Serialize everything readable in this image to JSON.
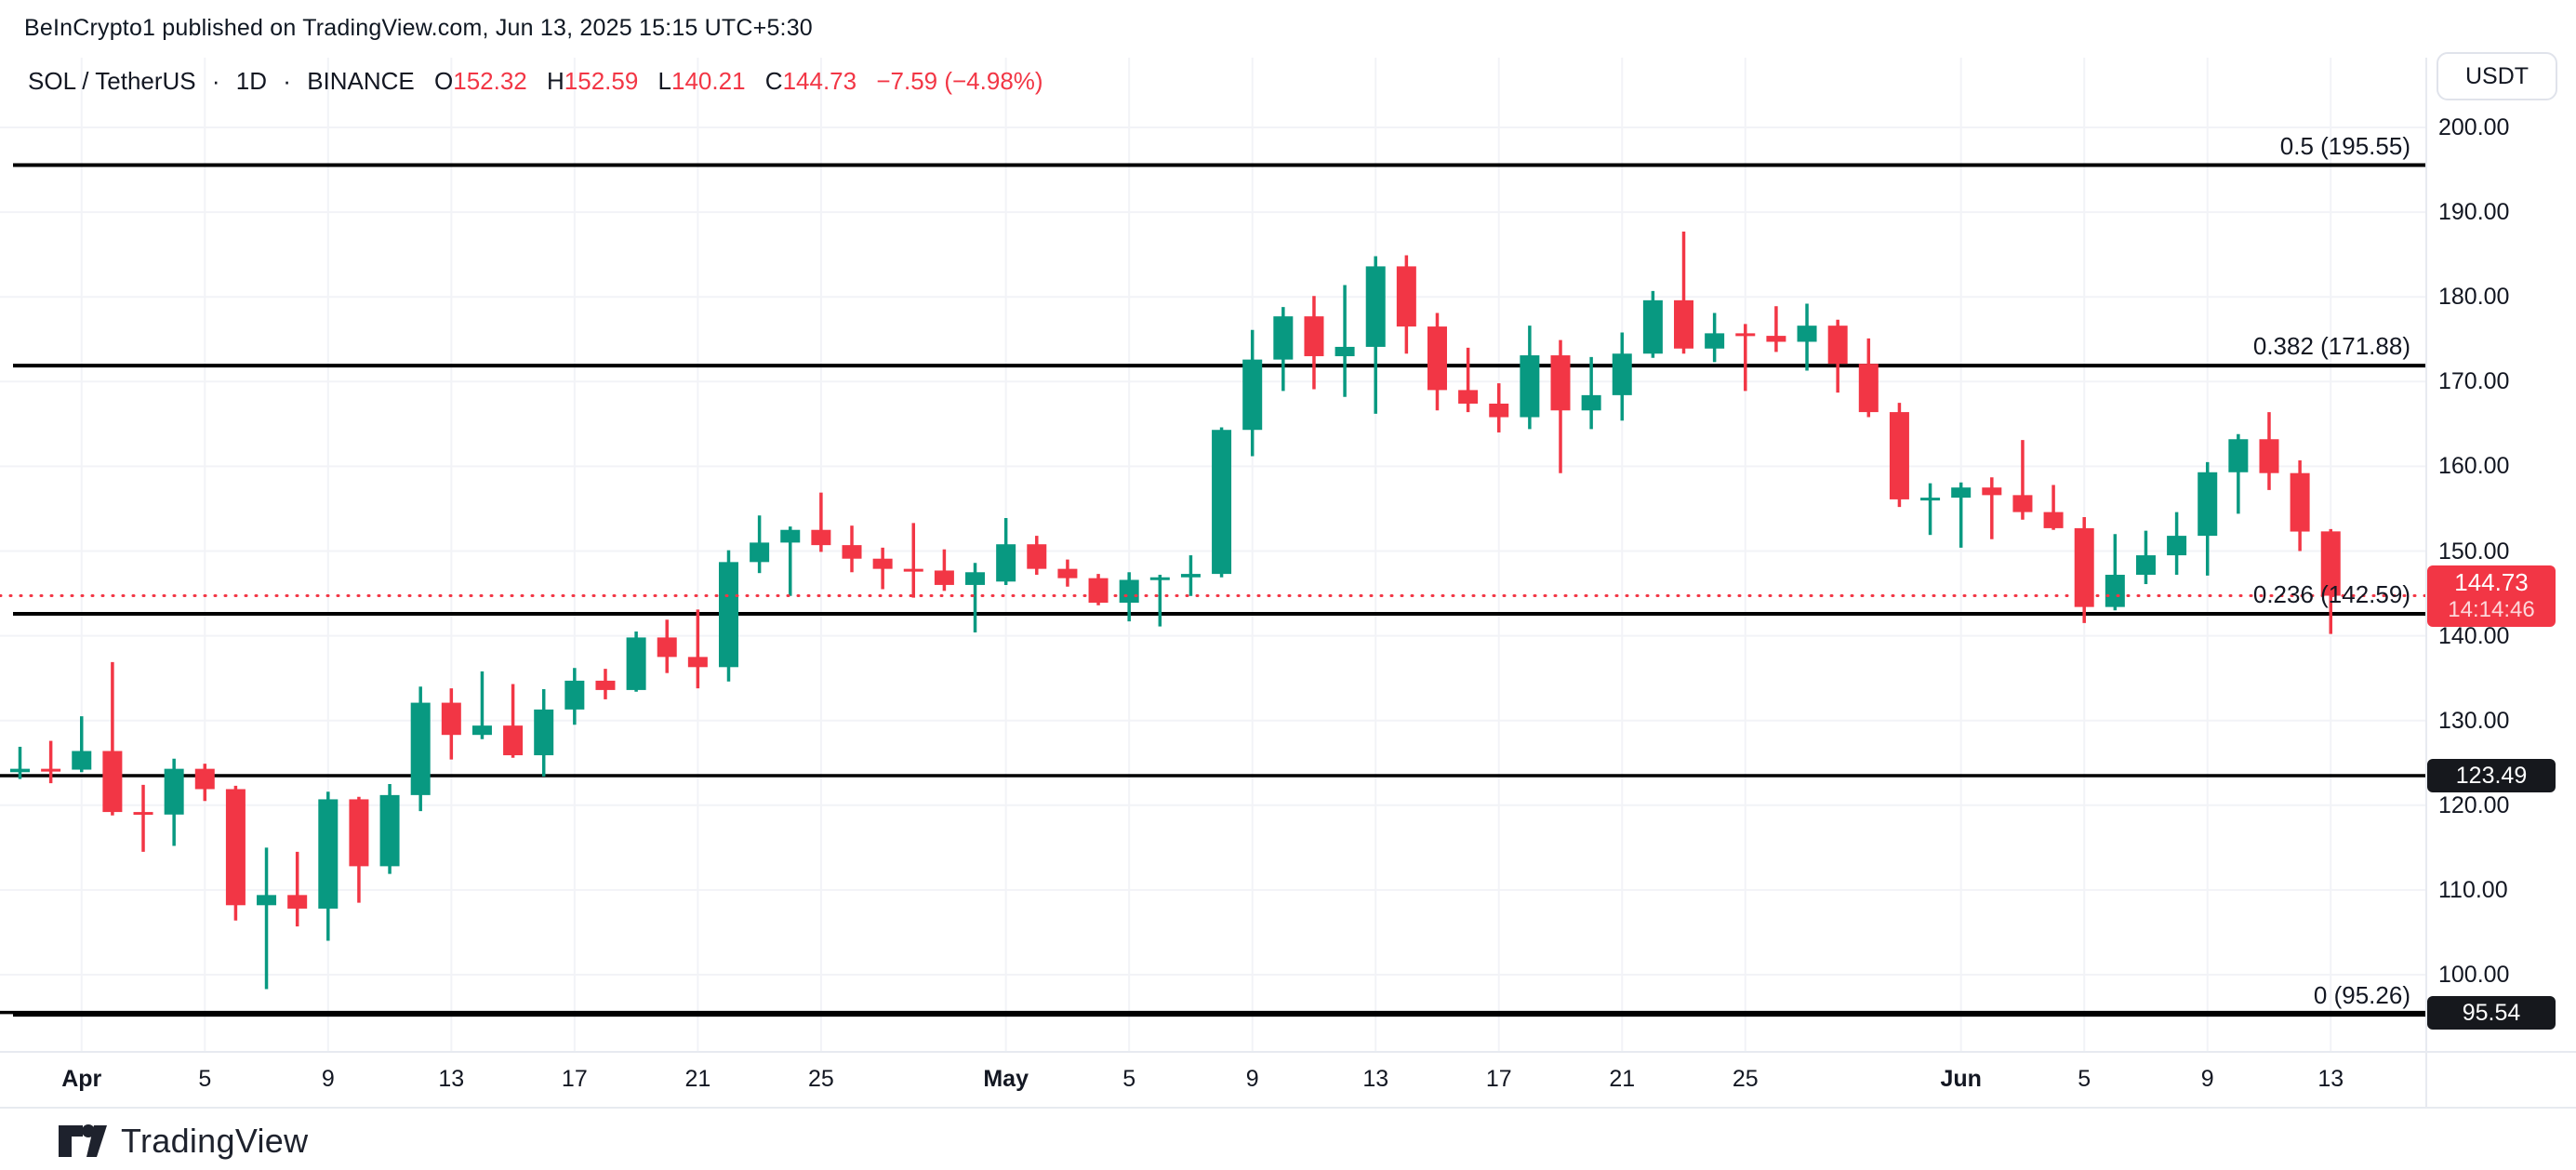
{
  "header": {
    "published_line": "BeInCrypto1 published on TradingView.com, Jun 13, 2025 15:15 UTC+5:30"
  },
  "legend": {
    "symbol": "SOL / TetherUS",
    "separator": "·",
    "interval": "1D",
    "exchange": "BINANCE",
    "ohlc": [
      {
        "label": "O",
        "value": "152.32"
      },
      {
        "label": "H",
        "value": "152.59"
      },
      {
        "label": "L",
        "value": "140.21"
      },
      {
        "label": "C",
        "value": "144.73"
      }
    ],
    "change": "−7.59 (−4.98%)"
  },
  "right_axis": {
    "currency_button": "USDT",
    "price_tag": {
      "price": "144.73",
      "countdown": "14:14:46"
    },
    "level_tags": [
      "123.49",
      "95.54"
    ]
  },
  "footer": {
    "brand": "TradingView"
  },
  "colors": {
    "up": "#089981",
    "down": "#f23645",
    "grid": "#f2f3f7",
    "line_black": "#000000",
    "last_price_red": "#f23645",
    "tag_black": "#16181d",
    "text_dark": "#131722"
  },
  "chart_data": {
    "type": "candlestick",
    "title": "SOL / TetherUS · 1D · BINANCE",
    "symbol": "SOL/USDT",
    "interval": "1D",
    "exchange": "BINANCE",
    "ylim": [
      93,
      202
    ],
    "grid": true,
    "price_gridlines": [
      100,
      110,
      120,
      130,
      140,
      150,
      160,
      170,
      180,
      190,
      200
    ],
    "price_axis_labels": [
      "100.00",
      "110.00",
      "120.00",
      "130.00",
      "140.00",
      "150.00",
      "160.00",
      "170.00",
      "180.00",
      "190.00",
      "200.00"
    ],
    "x_ticks": [
      {
        "index": 2,
        "label": "Apr",
        "bold": true
      },
      {
        "index": 6,
        "label": "5"
      },
      {
        "index": 10,
        "label": "9"
      },
      {
        "index": 14,
        "label": "13"
      },
      {
        "index": 18,
        "label": "17"
      },
      {
        "index": 22,
        "label": "21"
      },
      {
        "index": 26,
        "label": "25"
      },
      {
        "index": 32,
        "label": "May",
        "bold": true
      },
      {
        "index": 36,
        "label": "5"
      },
      {
        "index": 40,
        "label": "9"
      },
      {
        "index": 44,
        "label": "13"
      },
      {
        "index": 48,
        "label": "17"
      },
      {
        "index": 52,
        "label": "21"
      },
      {
        "index": 56,
        "label": "25"
      },
      {
        "index": 63,
        "label": "Jun",
        "bold": true
      },
      {
        "index": 67,
        "label": "5"
      },
      {
        "index": 71,
        "label": "9"
      },
      {
        "index": 75,
        "label": "13"
      }
    ],
    "fib_levels": [
      {
        "ratio": "0.5",
        "price": 195.55,
        "label": "0.5 (195.55)"
      },
      {
        "ratio": "0.382",
        "price": 171.88,
        "label": "0.382 (171.88)"
      },
      {
        "ratio": "0.236",
        "price": 142.59,
        "label": "0.236 (142.59)"
      },
      {
        "ratio": "0",
        "price": 95.26,
        "label": "0 (95.26)"
      }
    ],
    "level_lines": [
      {
        "price": 123.49,
        "tag": "123.49"
      },
      {
        "price": 95.54,
        "tag": "95.54"
      }
    ],
    "last_price_line": {
      "price": 144.73,
      "countdown": "14:14:46"
    },
    "candles": [
      [
        "Mar 30",
        123.9,
        126.9,
        123.1,
        124.3
      ],
      [
        "Mar 31",
        124.3,
        127.6,
        122.6,
        124.2
      ],
      [
        "Apr 1",
        124.2,
        130.5,
        123.9,
        126.4
      ],
      [
        "Apr 2",
        126.4,
        136.9,
        118.8,
        119.2
      ],
      [
        "Apr 3",
        119.2,
        122.4,
        114.5,
        118.9
      ],
      [
        "Apr 4",
        118.9,
        125.5,
        115.2,
        124.3
      ],
      [
        "Apr 5",
        124.3,
        124.9,
        120.5,
        121.9
      ],
      [
        "Apr 6",
        121.9,
        122.3,
        106.4,
        108.2
      ],
      [
        "Apr 7",
        108.2,
        115.0,
        98.3,
        109.4
      ],
      [
        "Apr 8",
        109.4,
        114.5,
        105.7,
        107.8
      ],
      [
        "Apr 9",
        107.8,
        121.6,
        104.0,
        120.7
      ],
      [
        "Apr 10",
        120.7,
        121.0,
        108.5,
        112.8
      ],
      [
        "Apr 11",
        112.8,
        122.5,
        111.9,
        121.2
      ],
      [
        "Apr 12",
        121.2,
        134.0,
        119.3,
        132.1
      ],
      [
        "Apr 13",
        132.1,
        133.8,
        125.4,
        128.3
      ],
      [
        "Apr 14",
        128.3,
        135.8,
        127.8,
        129.4
      ],
      [
        "Apr 15",
        129.4,
        134.3,
        125.6,
        125.9
      ],
      [
        "Apr 16",
        125.9,
        133.7,
        123.4,
        131.3
      ],
      [
        "Apr 17",
        131.3,
        136.2,
        129.5,
        134.7
      ],
      [
        "Apr 18",
        134.7,
        136.1,
        132.5,
        133.6
      ],
      [
        "Apr 19",
        133.6,
        140.5,
        133.4,
        139.8
      ],
      [
        "Apr 20",
        139.8,
        141.9,
        135.6,
        137.5
      ],
      [
        "Apr 21",
        137.5,
        143.1,
        133.8,
        136.3
      ],
      [
        "Apr 22",
        136.3,
        150.1,
        134.6,
        148.7
      ],
      [
        "Apr 23",
        148.7,
        154.2,
        147.4,
        151.0
      ],
      [
        "Apr 24",
        151.0,
        152.9,
        144.7,
        152.5
      ],
      [
        "Apr 25",
        152.5,
        156.9,
        149.9,
        150.7
      ],
      [
        "Apr 26",
        150.7,
        153.0,
        147.5,
        149.1
      ],
      [
        "Apr 27",
        149.1,
        150.4,
        145.5,
        147.9
      ],
      [
        "Apr 28",
        147.9,
        153.3,
        144.5,
        147.7
      ],
      [
        "Apr 29",
        147.7,
        150.2,
        145.3,
        146.0
      ],
      [
        "Apr 30",
        146.0,
        148.6,
        140.4,
        147.5
      ],
      [
        "May 1",
        146.4,
        153.9,
        146.0,
        150.8
      ],
      [
        "May 2",
        150.8,
        151.8,
        147.2,
        147.9
      ],
      [
        "May 3",
        147.9,
        149.0,
        145.8,
        146.8
      ],
      [
        "May 4",
        146.8,
        147.3,
        143.6,
        143.9
      ],
      [
        "May 5",
        143.9,
        147.5,
        141.7,
        146.6
      ],
      [
        "May 6",
        146.6,
        147.2,
        141.1,
        146.9
      ],
      [
        "May 7",
        146.9,
        149.5,
        144.7,
        147.3
      ],
      [
        "May 8",
        147.3,
        164.6,
        146.9,
        164.3
      ],
      [
        "May 9",
        164.3,
        176.1,
        161.2,
        172.6
      ],
      [
        "May 10",
        172.6,
        178.8,
        168.9,
        177.7
      ],
      [
        "May 11",
        177.7,
        180.1,
        169.1,
        173.0
      ],
      [
        "May 12",
        173.0,
        181.4,
        168.2,
        174.1
      ],
      [
        "May 13",
        174.1,
        184.8,
        166.2,
        183.6
      ],
      [
        "May 14",
        183.6,
        184.9,
        173.3,
        176.5
      ],
      [
        "May 15",
        176.5,
        178.1,
        166.6,
        169.0
      ],
      [
        "May 16",
        169.0,
        174.0,
        166.4,
        167.4
      ],
      [
        "May 17",
        167.4,
        169.8,
        164.0,
        165.8
      ],
      [
        "May 18",
        165.8,
        176.6,
        164.4,
        173.1
      ],
      [
        "May 19",
        173.1,
        174.9,
        159.2,
        166.6
      ],
      [
        "May 20",
        166.6,
        172.9,
        164.4,
        168.4
      ],
      [
        "May 21",
        168.4,
        175.8,
        165.4,
        173.3
      ],
      [
        "May 22",
        173.3,
        180.7,
        172.8,
        179.6
      ],
      [
        "May 23",
        179.6,
        187.7,
        173.3,
        173.9
      ],
      [
        "May 24",
        173.9,
        178.1,
        172.3,
        175.7
      ],
      [
        "May 25",
        175.7,
        176.8,
        168.9,
        175.4
      ],
      [
        "May 26",
        175.4,
        178.9,
        173.5,
        174.7
      ],
      [
        "May 27",
        174.7,
        179.2,
        171.3,
        176.6
      ],
      [
        "May 28",
        176.6,
        177.3,
        168.7,
        172.1
      ],
      [
        "May 29",
        172.1,
        175.1,
        165.8,
        166.4
      ],
      [
        "May 30",
        166.4,
        167.5,
        155.2,
        156.1
      ],
      [
        "May 31",
        156.1,
        158.0,
        151.9,
        156.3
      ],
      [
        "Jun 1",
        156.3,
        158.1,
        150.4,
        157.5
      ],
      [
        "Jun 2",
        157.5,
        158.7,
        151.4,
        156.6
      ],
      [
        "Jun 3",
        156.6,
        163.1,
        153.7,
        154.6
      ],
      [
        "Jun 4",
        154.6,
        157.8,
        152.5,
        152.7
      ],
      [
        "Jun 5",
        152.7,
        154.0,
        141.5,
        143.4
      ],
      [
        "Jun 6",
        143.4,
        152.0,
        143.0,
        147.2
      ],
      [
        "Jun 7",
        147.2,
        152.4,
        146.1,
        149.5
      ],
      [
        "Jun 8",
        149.5,
        154.6,
        147.2,
        151.8
      ],
      [
        "Jun 9",
        151.8,
        160.5,
        147.1,
        159.3
      ],
      [
        "Jun 10",
        159.3,
        163.8,
        154.4,
        163.2
      ],
      [
        "Jun 11",
        163.2,
        166.4,
        157.2,
        159.2
      ],
      [
        "Jun 12",
        159.2,
        160.7,
        150.0,
        152.3
      ],
      [
        "Jun 13",
        152.32,
        152.59,
        140.21,
        144.73
      ]
    ]
  }
}
